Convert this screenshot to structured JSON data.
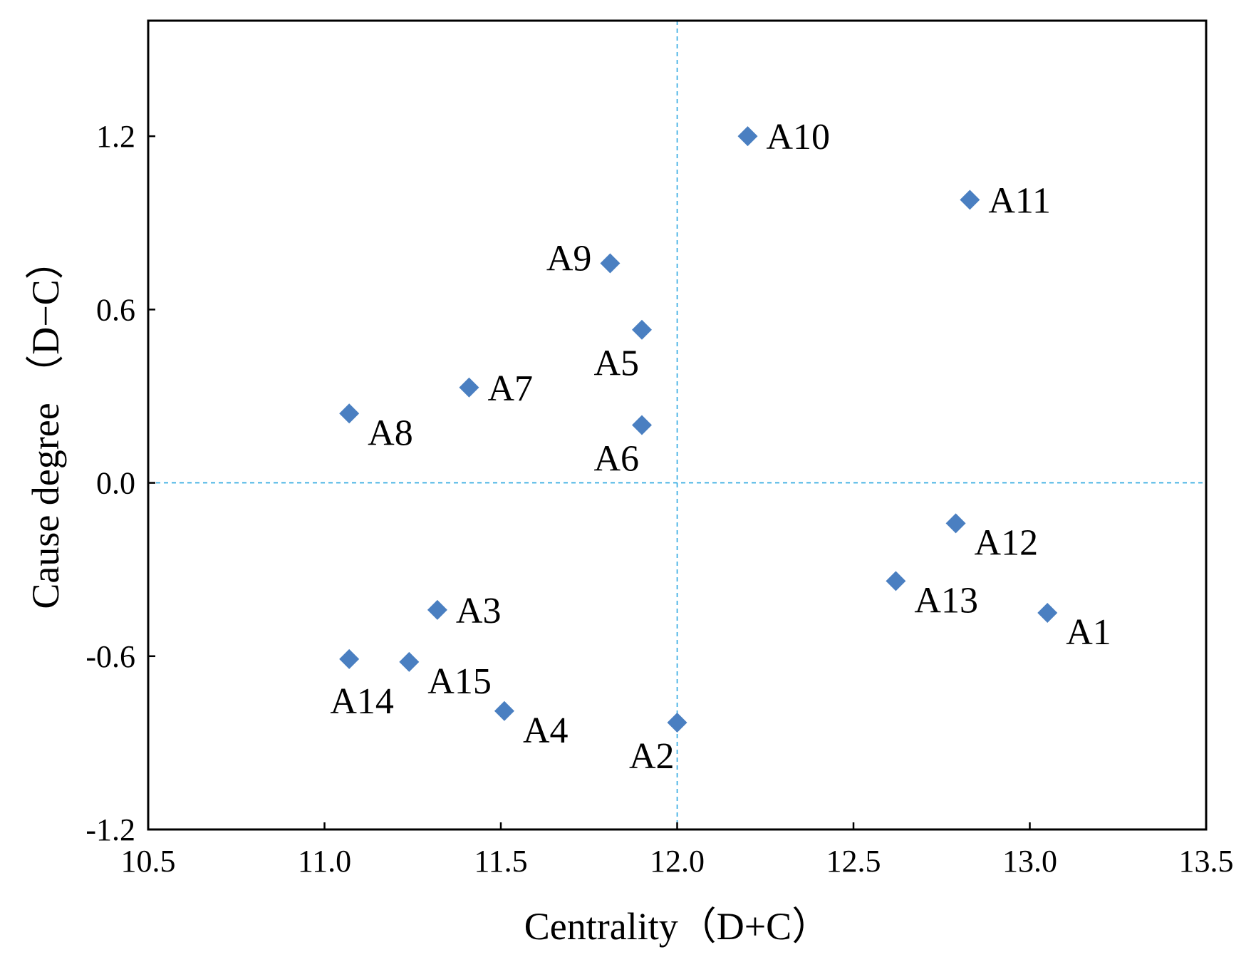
{
  "chart_data": {
    "type": "scatter",
    "title": "",
    "xlabel": "Centrality（D+C）",
    "ylabel": "Cause degree （D−C）",
    "xlim": [
      10.5,
      13.5
    ],
    "ylim": [
      -1.2,
      1.6
    ],
    "x_ticks": [
      10.5,
      11.0,
      11.5,
      12.0,
      12.5,
      13.0,
      13.5
    ],
    "x_tick_labels": [
      "10.5",
      "11.0",
      "11.5",
      "12.0",
      "12.5",
      "13.0",
      "13.5"
    ],
    "y_ticks": [
      -1.2,
      -0.6,
      0.0,
      0.6,
      1.2
    ],
    "y_tick_labels": [
      "-1.2",
      "-0.6",
      "0.0",
      "0.6",
      "1.2"
    ],
    "reference_lines": {
      "x": 12.0,
      "y": 0.0
    },
    "marker": "diamond",
    "marker_color": "#4a7fc1",
    "reference_color": "#2aa7e0",
    "grid": false,
    "points": [
      {
        "label": "A1",
        "x": 13.05,
        "y": -0.45,
        "label_pos": "below-right"
      },
      {
        "label": "A2",
        "x": 12.0,
        "y": -0.83,
        "label_pos": "below-left"
      },
      {
        "label": "A3",
        "x": 11.32,
        "y": -0.44,
        "label_pos": "right"
      },
      {
        "label": "A4",
        "x": 11.51,
        "y": -0.79,
        "label_pos": "below-right"
      },
      {
        "label": "A5",
        "x": 11.9,
        "y": 0.53,
        "label_pos": "below-left"
      },
      {
        "label": "A6",
        "x": 11.9,
        "y": 0.2,
        "label_pos": "below-left"
      },
      {
        "label": "A7",
        "x": 11.41,
        "y": 0.33,
        "label_pos": "right"
      },
      {
        "label": "A8",
        "x": 11.07,
        "y": 0.24,
        "label_pos": "below-right"
      },
      {
        "label": "A9",
        "x": 11.81,
        "y": 0.76,
        "label_pos": "left"
      },
      {
        "label": "A10",
        "x": 12.2,
        "y": 1.2,
        "label_pos": "right"
      },
      {
        "label": "A11",
        "x": 12.83,
        "y": 0.98,
        "label_pos": "right"
      },
      {
        "label": "A12",
        "x": 12.79,
        "y": -0.14,
        "label_pos": "below-right"
      },
      {
        "label": "A13",
        "x": 12.62,
        "y": -0.34,
        "label_pos": "below-right"
      },
      {
        "label": "A14",
        "x": 11.07,
        "y": -0.61,
        "label_pos": "below"
      },
      {
        "label": "A15",
        "x": 11.24,
        "y": -0.62,
        "label_pos": "below-right"
      }
    ]
  }
}
